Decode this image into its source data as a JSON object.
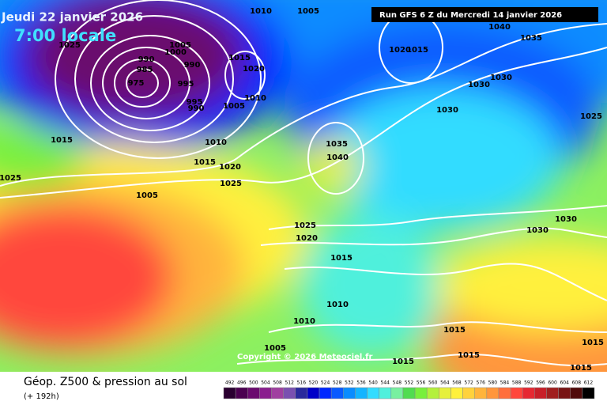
{
  "header": {
    "valid_date": "Jeudi 22 janvier 2026",
    "local_time": "7:00 locale",
    "run": "Run GFS 6 Z du Mercredi 14 janvier 2026"
  },
  "isobar_labels": [
    "1005",
    "1010",
    "1040",
    "1035",
    "1025",
    "1005",
    "1000",
    "990",
    "990",
    "1015",
    "1020",
    "1020",
    "1015",
    "1030",
    "1030",
    "985",
    "975",
    "995",
    "995",
    "990",
    "1010",
    "1005",
    "1015",
    "1010",
    "1030",
    "1025",
    "1035",
    "1040",
    "1015",
    "1020",
    "1025",
    "1025",
    "1005",
    "1025",
    "1020",
    "1015",
    "1030",
    "1030",
    "1010",
    "1010",
    "1015",
    "1015",
    "1005",
    "1015",
    "1015",
    "1015"
  ],
  "copyright": "Copyright © 2026 Meteociel.fr",
  "footer": {
    "title": "Géop. Z500 & pression au sol",
    "subtitle": "(+ 192h)"
  },
  "scale": {
    "values": [
      492,
      496,
      500,
      504,
      508,
      512,
      516,
      520,
      524,
      528,
      532,
      536,
      540,
      544,
      548,
      552,
      556,
      560,
      564,
      568,
      572,
      576,
      580,
      584,
      588,
      592,
      596,
      600,
      604,
      608,
      612
    ],
    "colors": [
      "#2a0030",
      "#4b0050",
      "#6a0a6e",
      "#8a1e8e",
      "#a040a0",
      "#7a50b0",
      "#2a2a9c",
      "#0000c8",
      "#0028ff",
      "#0a5aff",
      "#0a8cff",
      "#14b4ff",
      "#32dcff",
      "#50f0dc",
      "#78f0a0",
      "#50dc50",
      "#78f03c",
      "#b4f03c",
      "#e6f03c",
      "#fff03c",
      "#ffd23c",
      "#ffb43c",
      "#ff963c",
      "#ff6e3c",
      "#ff463c",
      "#e62832",
      "#c81e28",
      "#a01e1e",
      "#781414",
      "#500a0a",
      "#000000"
    ]
  }
}
